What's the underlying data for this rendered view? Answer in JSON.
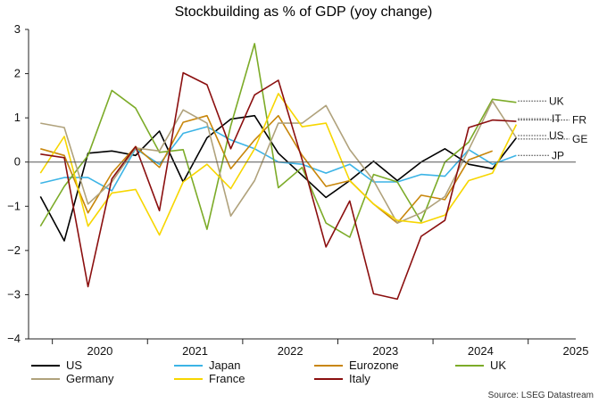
{
  "chart_data": {
    "type": "line",
    "title": "Stockbuilding as % of GDP (yoy change)",
    "xlabel": "",
    "ylabel": "",
    "ylim": [
      -4,
      3
    ],
    "yticks": [
      "3",
      "2",
      "1",
      "0",
      "−1",
      "−2",
      "−3",
      "−4"
    ],
    "x_tick_labels": [
      "2020",
      "2021",
      "2022",
      "2023",
      "2024",
      "2025"
    ],
    "x": [
      "2019Q4",
      "2020Q1",
      "2020Q2",
      "2020Q3",
      "2020Q4",
      "2021Q1",
      "2021Q2",
      "2021Q3",
      "2021Q4",
      "2022Q1",
      "2022Q2",
      "2022Q3",
      "2022Q4",
      "2023Q1",
      "2023Q2",
      "2023Q3",
      "2023Q4",
      "2024Q1",
      "2024Q2",
      "2024Q3",
      "2024Q4",
      "2025Q1",
      "2025Q2"
    ],
    "series": [
      {
        "name": "US",
        "color": "#000000",
        "values": [
          -0.78,
          -1.78,
          0.2,
          0.25,
          0.15,
          0.7,
          -0.45,
          0.55,
          0.97,
          1.05,
          0.2,
          -0.3,
          -0.8,
          -0.42,
          0.02,
          -0.42,
          0.0,
          0.3,
          -0.05,
          -0.15,
          0.55,
          null,
          null
        ]
      },
      {
        "name": "Japan",
        "color": "#3cb4e6",
        "values": [
          -0.48,
          -0.35,
          -0.35,
          -0.65,
          0.3,
          -0.05,
          0.65,
          0.8,
          0.5,
          0.3,
          0.0,
          -0.05,
          -0.25,
          -0.05,
          -0.45,
          -0.45,
          -0.28,
          -0.32,
          0.28,
          -0.05,
          0.15,
          null,
          null
        ]
      },
      {
        "name": "Eurozone",
        "color": "#c8860a",
        "values": [
          0.3,
          0.15,
          -1.15,
          -0.25,
          0.35,
          -0.12,
          0.9,
          1.05,
          -0.15,
          0.5,
          1.05,
          0.15,
          -0.55,
          -0.42,
          -0.95,
          -1.38,
          -0.75,
          -0.85,
          0.05,
          0.25,
          null,
          null,
          null
        ]
      },
      {
        "name": "UK",
        "color": "#7cab28",
        "values": [
          -1.45,
          -0.55,
          0.15,
          1.62,
          1.22,
          0.22,
          0.28,
          -1.52,
          0.82,
          2.68,
          -0.58,
          -0.12,
          -1.38,
          -1.7,
          -0.28,
          -0.45,
          -1.35,
          0.0,
          0.45,
          1.42,
          1.35,
          null,
          null
        ]
      },
      {
        "name": "Germany",
        "color": "#b0a27c",
        "values": [
          0.88,
          0.78,
          -0.95,
          -0.45,
          0.32,
          0.25,
          1.18,
          0.88,
          -1.22,
          -0.42,
          0.88,
          0.88,
          1.28,
          0.28,
          -0.42,
          -1.38,
          -1.15,
          -0.78,
          0.28,
          1.38,
          0.55,
          null,
          null
        ]
      },
      {
        "name": "France",
        "color": "#f7d600",
        "values": [
          -0.25,
          0.58,
          -1.45,
          -0.7,
          -0.62,
          -1.65,
          -0.45,
          -0.05,
          -0.6,
          0.3,
          1.55,
          0.8,
          0.88,
          -0.42,
          -0.95,
          -1.32,
          -1.38,
          -1.2,
          -0.42,
          -0.25,
          0.85,
          null,
          null
        ]
      },
      {
        "name": "Italy",
        "color": "#8b0f0f",
        "values": [
          0.18,
          0.1,
          -2.82,
          -0.38,
          0.35,
          -1.1,
          2.02,
          1.75,
          0.3,
          1.52,
          1.85,
          0.05,
          -1.92,
          -0.88,
          -2.98,
          -3.1,
          -1.68,
          -1.32,
          0.78,
          0.95,
          0.92,
          null,
          null
        ]
      }
    ],
    "end_labels": [
      {
        "text": "UK",
        "value": 1.38,
        "color": "#7cab28"
      },
      {
        "text": "IT",
        "value": 0.98,
        "color": "#8b0f0f"
      },
      {
        "text": "FR",
        "value": 0.95,
        "color": "#f7d600"
      },
      {
        "text": "US",
        "value": 0.6,
        "color": "#000000"
      },
      {
        "text": "GE",
        "value": 0.52,
        "color": "#b0a27c"
      },
      {
        "text": "JP",
        "value": 0.15,
        "color": "#3cb4e6"
      }
    ],
    "legend_position": "bottom",
    "grid": false
  },
  "source": "Source: LSEG Datastream"
}
